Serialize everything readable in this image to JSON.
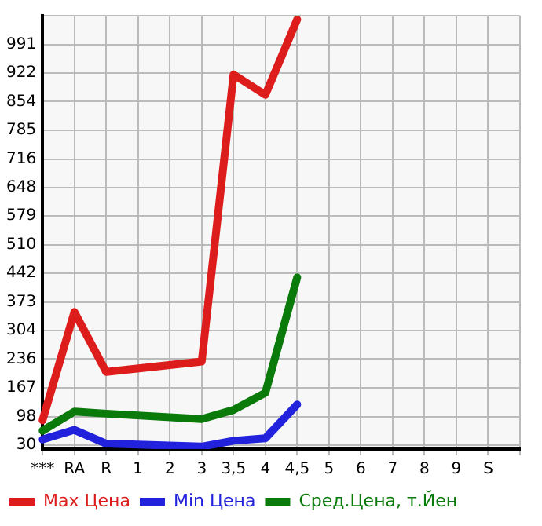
{
  "chart_data": {
    "type": "line",
    "categories": [
      "***",
      "RA",
      "R",
      "1",
      "2",
      "3",
      "3,5",
      "4",
      "4,5",
      "5",
      "6",
      "7",
      "8",
      "9",
      "S",
      null
    ],
    "series": [
      {
        "name": "Max Цена",
        "color": "#dd1c1c",
        "values": [
          89,
          349,
          205,
          null,
          null,
          230,
          919,
          870,
          1051,
          null,
          null,
          null,
          null,
          null,
          null,
          null
        ]
      },
      {
        "name": "Min Цена",
        "color": "#2222dd",
        "values": [
          43,
          66,
          33,
          null,
          null,
          26,
          40,
          46,
          127,
          null,
          null,
          null,
          null,
          null,
          null,
          null
        ]
      },
      {
        "name": "Сред.Цена, т.Йен",
        "color": "#0a7a0a",
        "values": [
          64,
          110,
          105,
          null,
          null,
          92,
          114,
          155,
          432,
          null,
          null,
          null,
          null,
          null,
          null,
          null
        ]
      }
    ],
    "ylim": [
      20,
      1060
    ],
    "yticks": [
      30,
      98,
      167,
      236,
      304,
      373,
      442,
      510,
      579,
      648,
      716,
      785,
      854,
      922,
      991,
      {
        "value": 1060,
        "label": null
      }
    ],
    "grid": true,
    "legend": "bottom",
    "marker": "none",
    "line_style": "solid"
  }
}
